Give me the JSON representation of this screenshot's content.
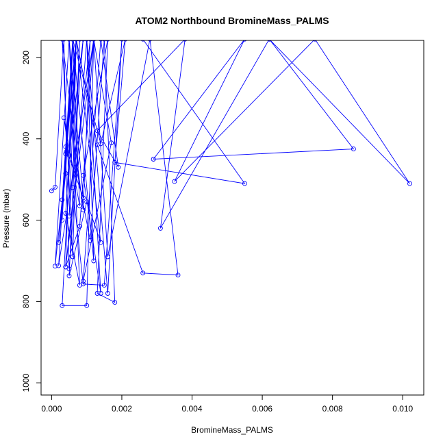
{
  "chart_data": {
    "type": "line",
    "title": "ATOM2 Northbound BromineMass_PALMS",
    "xlabel": "BromineMass_PALMS",
    "ylabel": "Pressure (mbar)",
    "xlim": [
      -0.0003,
      0.0106
    ],
    "ylim": [
      1030,
      158
    ],
    "y_reversed": true,
    "x_ticks": [
      {
        "value": 0,
        "label": "0.000"
      },
      {
        "value": 0.002,
        "label": "0.002"
      },
      {
        "value": 0.004,
        "label": "0.004"
      },
      {
        "value": 0.006,
        "label": "0.006"
      },
      {
        "value": 0.008,
        "label": "0.008"
      },
      {
        "value": 0.01,
        "label": "0.010"
      }
    ],
    "y_ticks": [
      {
        "value": 200,
        "label": "200"
      },
      {
        "value": 400,
        "label": "400"
      },
      {
        "value": 600,
        "label": "600"
      },
      {
        "value": 800,
        "label": "800"
      },
      {
        "value": 1000,
        "label": "1000"
      }
    ],
    "grid": false,
    "legend": "none",
    "colors": {
      "series": "#0000ff",
      "axis": "#000000"
    },
    "marker": "open-circle",
    "series": [
      {
        "x": [
          0.0,
          0.0001,
          0.00035,
          0.00042,
          0.0003,
          0.0006,
          0.0004,
          0.0002,
          0.0007,
          0.0005,
          0.0009,
          0.0005,
          0.00035,
          0.0008,
          0.0006,
          0.0012,
          0.001,
          0.0014,
          0.0009,
          0.0016,
          0.0013,
          0.0018,
          0.0015,
          0.0011,
          0.0007,
          0.0005,
          0.0009,
          0.0004,
          0.0007,
          0.0014,
          0.001,
          0.0005,
          0.0008,
          0.0006,
          0.0003,
          0.0009,
          0.0011,
          0.0004,
          0.0012,
          0.0002,
          0.0006,
          0.0014,
          0.0021,
          0.0018,
          0.0055,
          0.0026,
          0.0062,
          0.0102,
          0.0075,
          0.0035,
          0.0055,
          0.0029,
          0.0086,
          0.0062,
          0.0031,
          0.0038,
          0.0013,
          0.0019,
          0.0014,
          0.0009,
          0.0017,
          0.0012,
          0.0008,
          0.0004,
          0.0006,
          0.0003,
          0.0001,
          0.0005,
          0.0008,
          0.0004,
          0.0007,
          0.0006,
          0.0009,
          0.0015,
          0.002,
          0.0016,
          0.001,
          0.0005,
          0.0004,
          0.0007,
          0.0013,
          0.0026,
          0.0036,
          0.0028,
          0.0016,
          0.0012,
          0.001,
          0.0003,
          0.0007
        ],
        "y": [
          528,
          519,
          155,
          432,
          600,
          155,
          485,
          655,
          155,
          590,
          155,
          440,
          348,
          565,
          155,
          700,
          155,
          780,
          490,
          155,
          780,
          802,
          155,
          650,
          470,
          155,
          545,
          420,
          155,
          655,
          555,
          737,
          155,
          690,
          155,
          575,
          155,
          715,
          155,
          712,
          155,
          412,
          155,
          458,
          510,
          155,
          155,
          510,
          155,
          505,
          155,
          450,
          425,
          155,
          620,
          155,
          380,
          470,
          155,
          750,
          410,
          155,
          615,
          715,
          155,
          550,
          713,
          155,
          760,
          583,
          155,
          520,
          757,
          760,
          155,
          780,
          155,
          720,
          437,
          155,
          415,
          730,
          735,
          155,
          690,
          155,
          810,
          810,
          155
        ]
      }
    ],
    "point_labels": []
  }
}
